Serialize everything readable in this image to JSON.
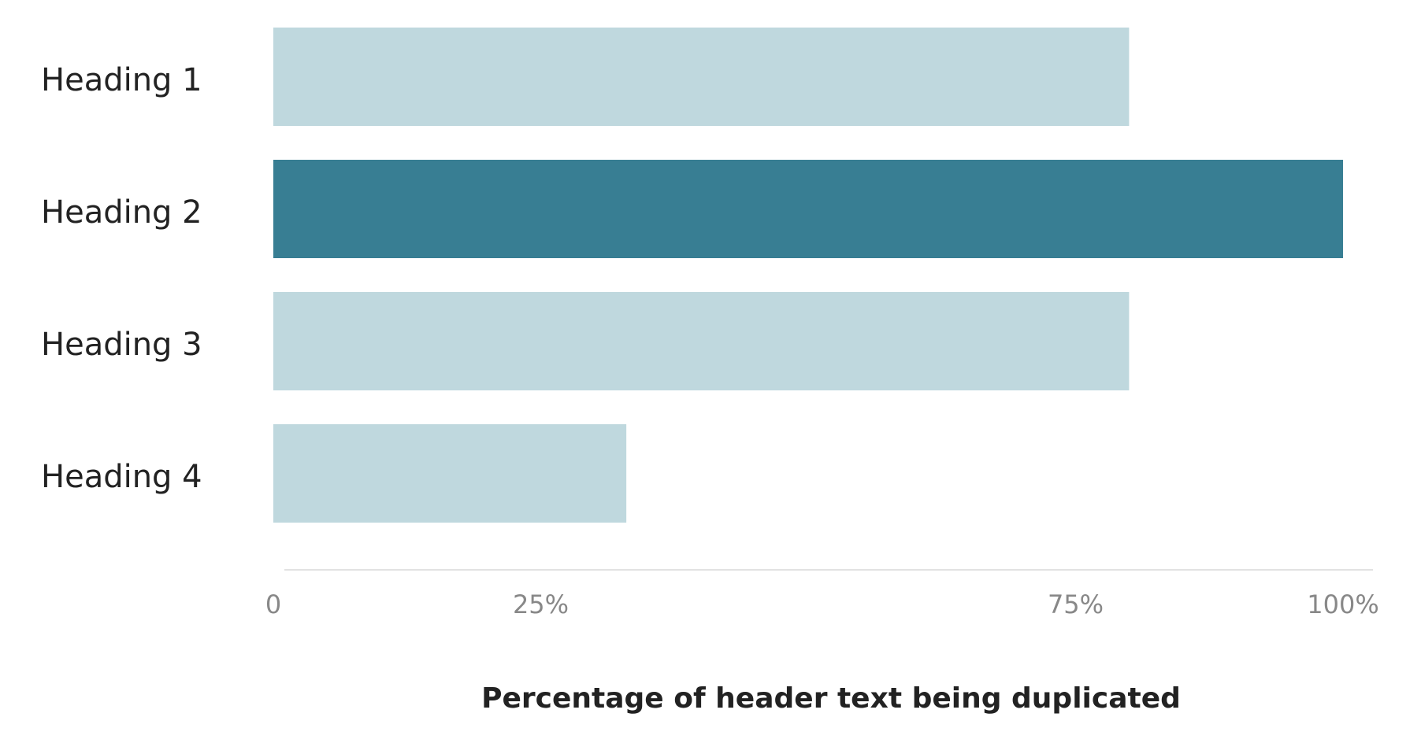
{
  "chart_data": {
    "type": "hbar",
    "categories": [
      "Heading 1",
      "Heading 2",
      "Heading 3",
      "Heading 4"
    ],
    "values": [
      80,
      100,
      80,
      33
    ],
    "colors": [
      "#bfd8de",
      "#387e93",
      "#bfd8de",
      "#bfd8de"
    ],
    "xlabel": "Percentage of header text being duplicated",
    "xlim": [
      0,
      100
    ],
    "xticks": [
      0,
      {
        "value": 25,
        "label": "25%"
      },
      {
        "value": 75,
        "label": "75%"
      },
      {
        "value": 100,
        "label": "100%"
      }
    ]
  }
}
